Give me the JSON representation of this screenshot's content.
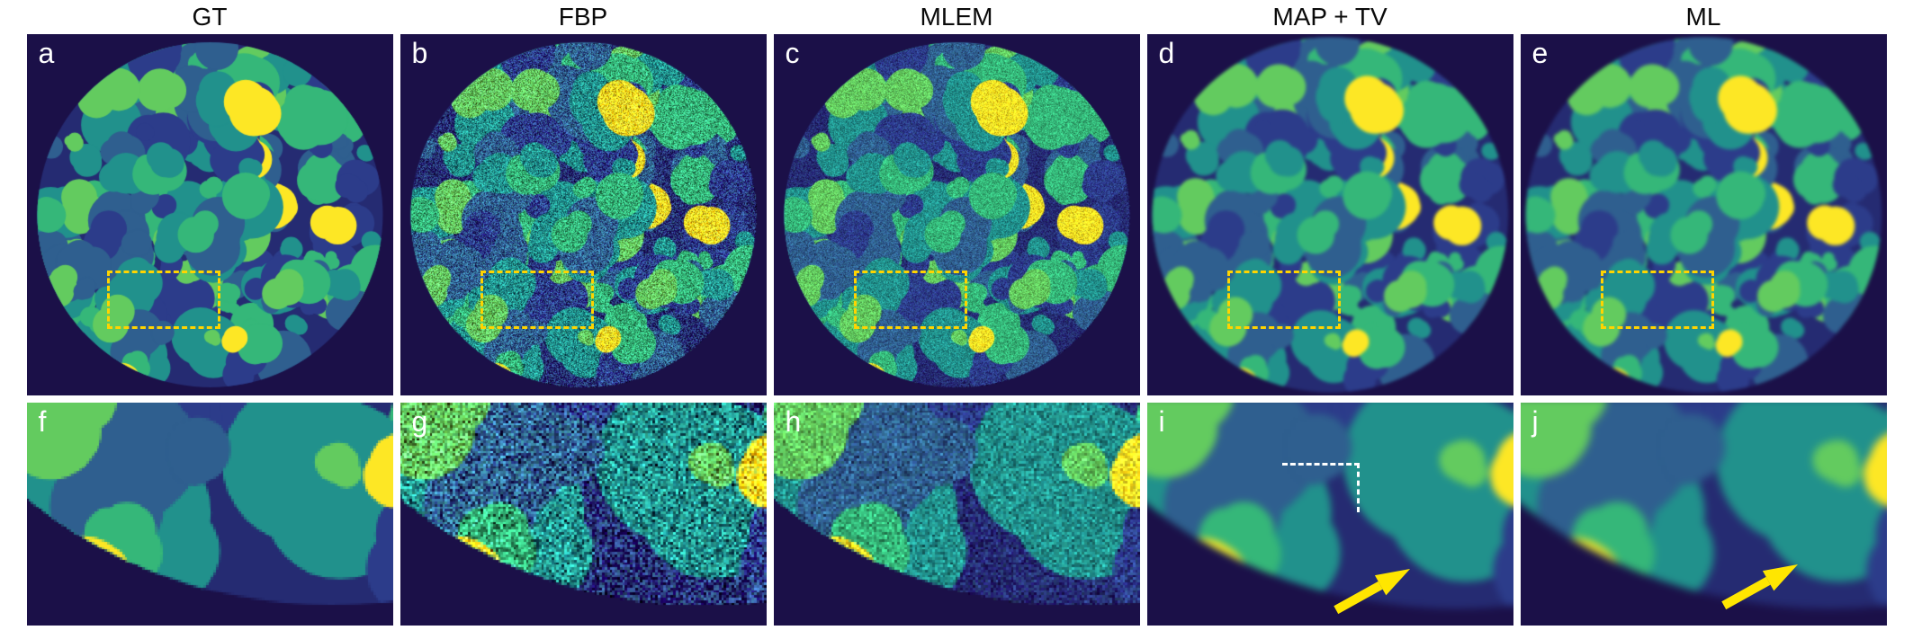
{
  "columns": [
    {
      "title": "GT",
      "top_label": "a",
      "bottom_label": "f",
      "style": "sharp"
    },
    {
      "title": "FBP",
      "top_label": "b",
      "bottom_label": "g",
      "style": "noise-strong"
    },
    {
      "title": "MLEM",
      "top_label": "c",
      "bottom_label": "h",
      "style": "noise-medium"
    },
    {
      "title": "MAP + TV",
      "top_label": "d",
      "bottom_label": "i",
      "style": "smooth-tv",
      "annotations": [
        "white-dashed-corner",
        "yellow-arrow"
      ]
    },
    {
      "title": "ML",
      "top_label": "e",
      "bottom_label": "j",
      "style": "smooth",
      "annotations": [
        "yellow-arrow"
      ]
    }
  ],
  "annotation_colors": {
    "roi_box": "#ffd400",
    "arrow": "#ffe600",
    "corner_marks": "#ffffff"
  },
  "palette": {
    "outside": "#1b1048",
    "inside": "#252b72",
    "navy": "#2c3c8a",
    "blue": "#2f5f8f",
    "teal": "#21918c",
    "green": "#35b779",
    "light_green": "#63cb5f",
    "yellow": "#fde725"
  }
}
